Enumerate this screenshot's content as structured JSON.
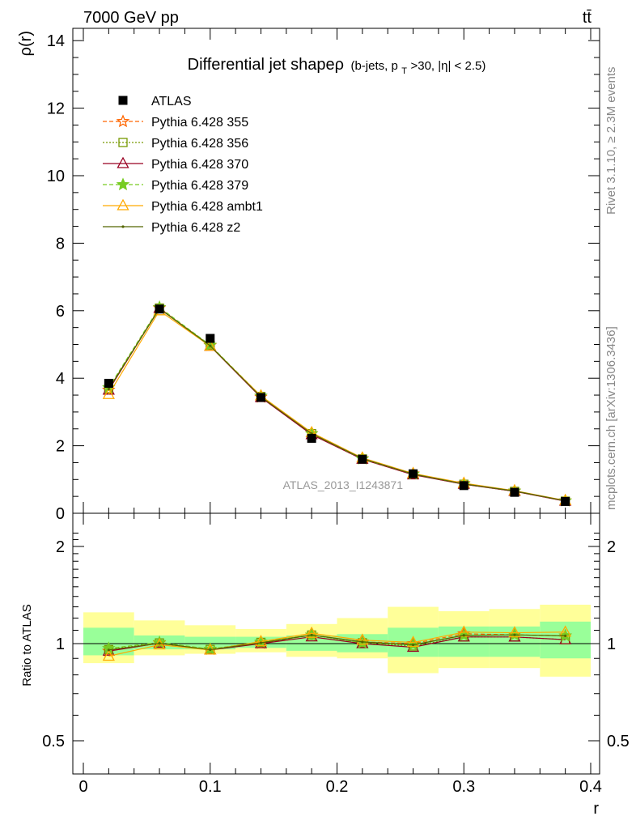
{
  "header": {
    "left": "7000 GeV pp",
    "right": "tt̄"
  },
  "side_labels": {
    "rivet": "Rivet 3.1.10, ≥ 2.3M events",
    "mcplots": "mcplots.cern.ch [arXiv:1306.3436]"
  },
  "chart_data": {
    "type": "line",
    "title_main": "Differential jet shapeρ",
    "title_sub_a": "(b-jets, p",
    "title_sub_t": "T",
    "title_sub_b": ">30, |η| < 2.5)",
    "xlabel": "r",
    "ylabel": "ρ(r)",
    "ratio_ylabel": "Ratio to ATLAS",
    "watermark": "ATLAS_2013_I1243871",
    "xlim": [
      0,
      0.4
    ],
    "ylim": [
      0,
      14.5
    ],
    "ratio_ylim": [
      0.4,
      2.3
    ],
    "x_ticks": [
      "0",
      "0.1",
      "0.2",
      "0.3",
      "0.4"
    ],
    "y_ticks": [
      "0",
      "2",
      "4",
      "6",
      "8",
      "10",
      "12",
      "14"
    ],
    "ratio_ticks": [
      "0.5",
      "1",
      "2"
    ],
    "bin_edges": [
      0,
      0.04,
      0.08,
      0.12,
      0.16,
      0.2,
      0.24,
      0.28,
      0.32,
      0.36,
      0.4
    ],
    "x": [
      0.02,
      0.06,
      0.1,
      0.14,
      0.18,
      0.22,
      0.26,
      0.3,
      0.34,
      0.38
    ],
    "data": {
      "name": "ATLAS",
      "values": [
        3.85,
        6.05,
        5.18,
        3.43,
        2.22,
        1.6,
        1.17,
        0.82,
        0.62,
        0.35
      ]
    },
    "bands": {
      "green_lo": [
        0.92,
        0.96,
        0.96,
        0.97,
        0.95,
        0.94,
        0.91,
        0.91,
        0.91,
        0.9
      ],
      "green_hi": [
        1.12,
        1.06,
        1.05,
        1.05,
        1.06,
        1.07,
        1.12,
        1.13,
        1.13,
        1.17
      ],
      "yellow_lo": [
        0.87,
        0.92,
        0.93,
        0.94,
        0.91,
        0.9,
        0.81,
        0.84,
        0.84,
        0.79
      ],
      "yellow_hi": [
        1.25,
        1.18,
        1.14,
        1.11,
        1.15,
        1.2,
        1.3,
        1.26,
        1.28,
        1.32
      ]
    },
    "series": [
      {
        "name": "Pythia 6.428 355",
        "color": "#ff6600",
        "dash": "5,3",
        "marker": "star-open",
        "values": [
          3.65,
          6.08,
          4.97,
          3.44,
          2.36,
          1.62,
          1.17,
          0.88,
          0.66,
          0.37
        ]
      },
      {
        "name": "Pythia 6.428 356",
        "color": "#779900",
        "dash": "2,2",
        "marker": "square-open",
        "values": [
          3.69,
          6.08,
          4.97,
          3.46,
          2.36,
          1.61,
          1.15,
          0.86,
          0.65,
          0.36
        ]
      },
      {
        "name": "Pythia 6.428 370",
        "color": "#990022",
        "dash": "",
        "marker": "triangle-open",
        "values": [
          3.65,
          6.07,
          4.95,
          3.43,
          2.33,
          1.6,
          1.14,
          0.86,
          0.65,
          0.36
        ]
      },
      {
        "name": "Pythia 6.428 379",
        "color": "#77cc22",
        "dash": "5,3",
        "marker": "star-filled",
        "values": [
          3.72,
          6.1,
          4.98,
          3.47,
          2.36,
          1.61,
          1.16,
          0.87,
          0.66,
          0.37
        ]
      },
      {
        "name": "Pythia 6.428 ambt1",
        "color": "#ffaa00",
        "dash": "",
        "marker": "triangle-open",
        "values": [
          3.52,
          6.0,
          4.95,
          3.48,
          2.39,
          1.64,
          1.18,
          0.89,
          0.67,
          0.38
        ]
      },
      {
        "name": "Pythia 6.428 z2",
        "color": "#556600",
        "dash": "",
        "marker": "dot",
        "values": [
          3.68,
          6.06,
          4.96,
          3.45,
          2.36,
          1.62,
          1.16,
          0.87,
          0.66,
          0.37
        ]
      }
    ]
  }
}
